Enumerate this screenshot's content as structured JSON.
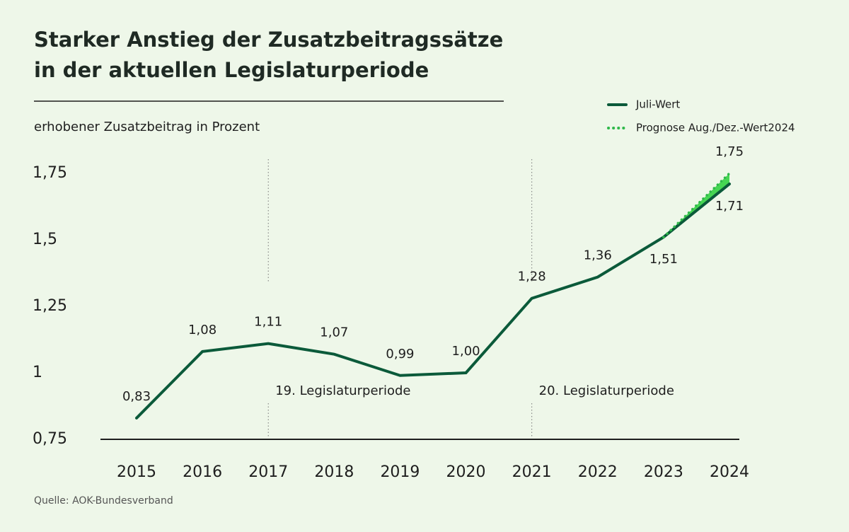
{
  "chart_data": {
    "type": "line",
    "title": [
      "Starker Anstieg der Zusatzbeitragssätze",
      "in der aktuellen Legislaturperiode"
    ],
    "subtitle": "erhobener Zusatzbeitrag in Prozent",
    "source": "Quelle: AOK-Bundesverband",
    "categories": [
      "2015",
      "2016",
      "2017",
      "2018",
      "2019",
      "2020",
      "2021",
      "2022",
      "2023",
      "2024"
    ],
    "series": [
      {
        "name": "Juli-Wert",
        "color": "#0b5a3a",
        "style": "solid",
        "values": [
          0.83,
          1.08,
          1.11,
          1.07,
          0.99,
          1.0,
          1.28,
          1.36,
          1.51,
          1.71
        ],
        "value_labels": [
          "0,83",
          "1,08",
          "1,11",
          "1,07",
          "0,99",
          "1,00",
          "1,28",
          "1,36",
          "1,51",
          "1,71"
        ]
      },
      {
        "name": "Prognose Aug./Dez.-Wert2024",
        "color": "#2fb84a",
        "style": "dotted",
        "values": [
          null,
          null,
          null,
          null,
          null,
          null,
          null,
          null,
          1.51,
          1.75
        ],
        "value_labels": [
          null,
          null,
          null,
          null,
          null,
          null,
          null,
          null,
          null,
          "1,75"
        ]
      }
    ],
    "fill_color": "#46d653",
    "annotations": [
      {
        "text": "19. Legislaturperiode",
        "category": "2017"
      },
      {
        "text": "20. Legislaturperiode",
        "category": "2021"
      }
    ],
    "ylim": [
      0.75,
      1.8
    ],
    "yticks": [
      {
        "value": 0.75,
        "label": "0,75"
      },
      1,
      {
        "value": 1.25,
        "label": "1,25"
      },
      {
        "value": 1.5,
        "label": "1,5"
      },
      {
        "value": 1.75,
        "label": "1,75"
      }
    ],
    "grid": false
  }
}
